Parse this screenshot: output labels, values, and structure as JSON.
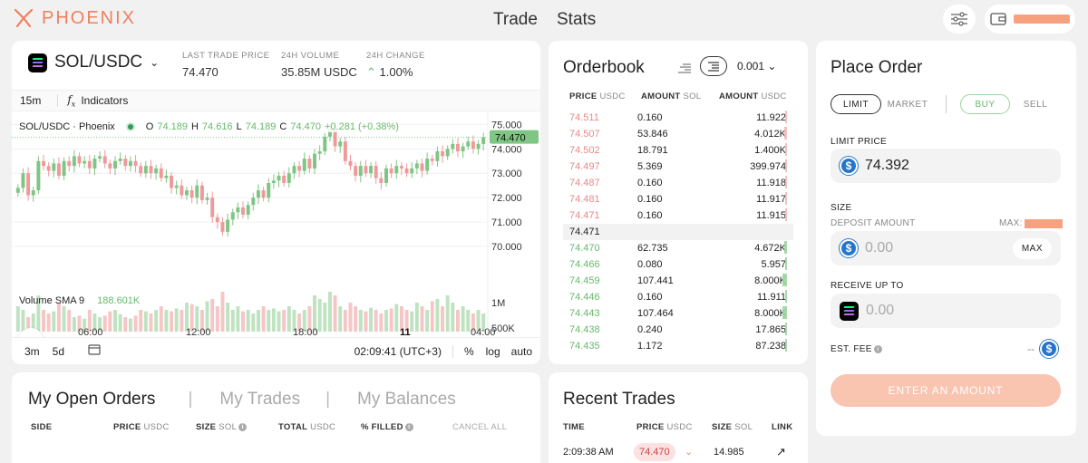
{
  "header": {
    "brand": "PHOENIX",
    "nav": {
      "trade": "Trade",
      "stats": "Stats"
    },
    "icons": {
      "settings": "sliders-icon",
      "wallet": "wallet-icon"
    }
  },
  "market": {
    "pair": "SOL/USDC",
    "stats": [
      {
        "label": "LAST TRADE PRICE",
        "value": "74.470"
      },
      {
        "label": "24H VOLUME",
        "value": "35.85M USDC"
      },
      {
        "label": "24H CHANGE",
        "value": "1.00%"
      }
    ]
  },
  "chart_toolbar": {
    "interval": "15m",
    "indicators": "Indicators"
  },
  "chart_legend": {
    "symbol": "SOL/USDC · Phoenix",
    "o_label": "O",
    "o": "74.189",
    "h_label": "H",
    "h": "74.616",
    "l_label": "L",
    "l": "74.189",
    "c_label": "C",
    "c": "74.470",
    "change": "+0.281 (+0.38%)",
    "volume_label": "Volume SMA 9",
    "volume_value": "188.601K"
  },
  "chart_data": {
    "type": "candlestick",
    "series": [
      {
        "name": "SOL/USDC",
        "y_ticks": [
          "75.000",
          "74.000",
          "73.000",
          "72.000",
          "71.000",
          "70.000"
        ],
        "ylim": [
          70,
          75.2
        ],
        "last": "74.470"
      },
      {
        "name": "Volume SMA 9",
        "y_ticks": [
          "1M",
          "500K"
        ],
        "last": "188.601K"
      }
    ],
    "x_ticks": [
      "06:00",
      "12:00",
      "18:00",
      "11",
      "04:00"
    ],
    "closes": [
      72.4,
      73.0,
      72.1,
      72.3,
      73.5,
      73.3,
      73.1,
      73.4,
      72.9,
      73.5,
      73.3,
      73.7,
      73.4,
      73.5,
      73.2,
      73.6,
      73.7,
      73.4,
      73.2,
      73.5,
      73.6,
      73.3,
      73.5,
      73.3,
      73.0,
      73.3,
      73.0,
      73.2,
      72.8,
      72.9,
      72.4,
      72.5,
      72.1,
      72.3,
      72.0,
      72.5,
      71.9,
      72.0,
      71.2,
      71.0,
      70.6,
      71.1,
      71.4,
      71.6,
      71.3,
      71.7,
      72.0,
      72.3,
      72.0,
      72.6,
      72.7,
      72.9,
      72.6,
      73.0,
      73.3,
      73.1,
      73.6,
      73.2,
      73.8,
      73.9,
      74.5,
      74.8,
      74.1,
      74.3,
      73.5,
      73.3,
      72.9,
      73.3,
      73.0,
      73.3,
      72.8,
      72.6,
      73.2,
      73.0,
      73.3,
      73.2,
      73.0,
      73.2,
      73.4,
      73.1,
      73.6,
      73.5,
      73.9,
      73.7,
      74.0,
      74.2,
      73.9,
      74.1,
      74.3,
      74.0,
      74.2,
      74.47
    ],
    "volumes": [
      0.35,
      0.3,
      0.2,
      0.25,
      0.5,
      0.3,
      0.25,
      0.28,
      0.4,
      0.35,
      0.3,
      0.2,
      0.22,
      0.18,
      0.3,
      0.25,
      0.2,
      0.22,
      0.28,
      0.3,
      0.24,
      0.2,
      0.18,
      0.22,
      0.3,
      0.28,
      0.25,
      0.3,
      0.35,
      0.3,
      0.28,
      0.32,
      0.3,
      0.4,
      0.38,
      0.35,
      0.3,
      0.42,
      0.45,
      0.35,
      0.55,
      0.4,
      0.3,
      0.35,
      0.28,
      0.3,
      0.25,
      0.3,
      0.35,
      0.3,
      0.32,
      0.28,
      0.3,
      0.35,
      0.3,
      0.25,
      0.3,
      0.35,
      0.5,
      0.45,
      0.4,
      0.55,
      0.5,
      0.35,
      0.3,
      0.4,
      0.35,
      0.3,
      0.28,
      0.33,
      0.3,
      0.25,
      0.3,
      0.32,
      0.38,
      0.35,
      0.3,
      0.28,
      0.4,
      0.35,
      0.3,
      0.42,
      0.45,
      0.35,
      0.5,
      0.4,
      0.3,
      0.35,
      0.3,
      0.25,
      0.3,
      0.25
    ]
  },
  "chart_bottom": {
    "r1": "3m",
    "r2": "5d",
    "time": "02:09:41 (UTC+3)",
    "pct": "%",
    "log": "log",
    "auto": "auto"
  },
  "orderbook": {
    "title": "Orderbook",
    "tick": "0.001",
    "headers": {
      "price": "PRICE",
      "price_unit": "USDC",
      "amount_sol": "AMOUNT",
      "amount_sol_unit": "SOL",
      "amount_usdc": "AMOUNT",
      "amount_usdc_unit": "USDC"
    },
    "asks": [
      {
        "price": "74.511",
        "amount": "0.160",
        "usdc": "11.922",
        "depth": 0.05
      },
      {
        "price": "74.507",
        "amount": "53.846",
        "usdc": "4.012K",
        "depth": 0.3
      },
      {
        "price": "74.502",
        "amount": "18.791",
        "usdc": "1.400K",
        "depth": 0.15
      },
      {
        "price": "74.497",
        "amount": "5.369",
        "usdc": "399.974",
        "depth": 0.08
      },
      {
        "price": "74.487",
        "amount": "0.160",
        "usdc": "11.918",
        "depth": 0.03
      },
      {
        "price": "74.481",
        "amount": "0.160",
        "usdc": "11.917",
        "depth": 0.03
      },
      {
        "price": "74.471",
        "amount": "0.160",
        "usdc": "11.915",
        "depth": 0.03
      }
    ],
    "mid": "74.471",
    "bids": [
      {
        "price": "74.470",
        "amount": "62.735",
        "usdc": "4.672K",
        "depth": 0.3
      },
      {
        "price": "74.466",
        "amount": "0.080",
        "usdc": "5.957",
        "depth": 0.03
      },
      {
        "price": "74.459",
        "amount": "107.441",
        "usdc": "8.000K",
        "depth": 0.5
      },
      {
        "price": "74.446",
        "amount": "0.160",
        "usdc": "11.911",
        "depth": 0.03
      },
      {
        "price": "74.443",
        "amount": "107.464",
        "usdc": "8.000K",
        "depth": 0.5
      },
      {
        "price": "74.438",
        "amount": "0.240",
        "usdc": "17.865",
        "depth": 0.03
      },
      {
        "price": "74.435",
        "amount": "1.172",
        "usdc": "87.238",
        "depth": 0.05
      }
    ]
  },
  "place_order": {
    "title": "Place Order",
    "types": {
      "limit": "LIMIT",
      "market": "MARKET"
    },
    "sides": {
      "buy": "BUY",
      "sell": "SELL"
    },
    "limit_price_label": "LIMIT PRICE",
    "limit_price": "74.392",
    "size_label": "SIZE",
    "deposit_label": "DEPOSIT AMOUNT",
    "max_label": "MAX:",
    "deposit_placeholder": "0.00",
    "max_button": "MAX",
    "receive_label": "RECEIVE UP TO",
    "receive_placeholder": "0.00",
    "fee_label": "EST. FEE",
    "fee_value": "--",
    "submit": "ENTER AN AMOUNT"
  },
  "orders_panel": {
    "tabs": [
      "My Open Orders",
      "My Trades",
      "My Balances"
    ],
    "columns": {
      "side": "SIDE",
      "price": "PRICE",
      "price_unit": "USDC",
      "size": "SIZE",
      "size_unit": "SOL",
      "total": "TOTAL",
      "total_unit": "USDC",
      "filled": "% FILLED",
      "cancel_all": "CANCEL ALL"
    }
  },
  "recent_trades": {
    "title": "Recent Trades",
    "columns": {
      "time": "TIME",
      "price": "PRICE",
      "price_unit": "USDC",
      "size": "SIZE",
      "size_unit": "SOL",
      "link": "LINK"
    },
    "rows": [
      {
        "time": "2:09:38 AM",
        "price": "74.470",
        "size": "14.985"
      }
    ]
  },
  "colors": {
    "brand": "#f0805e",
    "up": "#67b96b",
    "down": "#e98888",
    "submit": "#f9c4b0"
  }
}
